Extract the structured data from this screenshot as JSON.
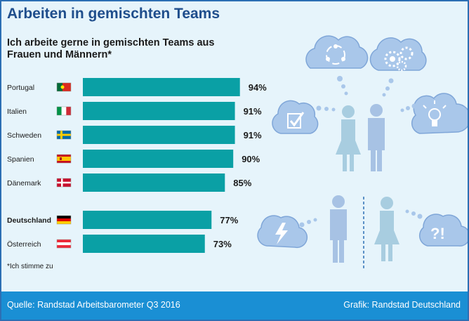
{
  "title": "Arbeiten in gemischten Teams",
  "subtitle": "Ich arbeite gerne in gemischten Teams aus Frauen und Männern*",
  "footnote": "*Ich stimme zu",
  "footer": {
    "source": "Quelle: Randstad Arbeitsbarometer Q3 2016",
    "credit": "Grafik: Randstad Deutschland"
  },
  "colors": {
    "bar": "#0aa0a5",
    "frame": "#2c6fb4",
    "background": "#e6f4fb",
    "footer": "#1a8fd4",
    "title": "#1f4e8c",
    "figure_female": "#a8cde0",
    "figure_male": "#a7c2e4",
    "cloud": "#a9c7ea"
  },
  "chart_data": {
    "type": "bar",
    "orientation": "horizontal",
    "categories": [
      "Portugal",
      "Italien",
      "Schweden",
      "Spanien",
      "Dänemark",
      "Deutschland",
      "Österreich"
    ],
    "values": [
      94,
      91,
      91,
      90,
      85,
      77,
      73
    ],
    "value_labels": [
      "94%",
      "91%",
      "91%",
      "90%",
      "85%",
      "77%",
      "73%"
    ],
    "flags": [
      "flag-portugal",
      "flag-italy",
      "flag-sweden",
      "flag-spain",
      "flag-denmark",
      "flag-germany",
      "flag-austria"
    ],
    "highlight": "Deutschland",
    "xlim": [
      0,
      100
    ],
    "grid": false
  },
  "illustration": {
    "icons": [
      "team-cycle-cloud-icon",
      "gears-cloud-icon",
      "checklist-cloud-icon",
      "lightbulb-cloud-icon",
      "lightning-cloud-icon",
      "question-cloud-icon",
      "woman-figure-icon",
      "man-figure-icon"
    ]
  }
}
